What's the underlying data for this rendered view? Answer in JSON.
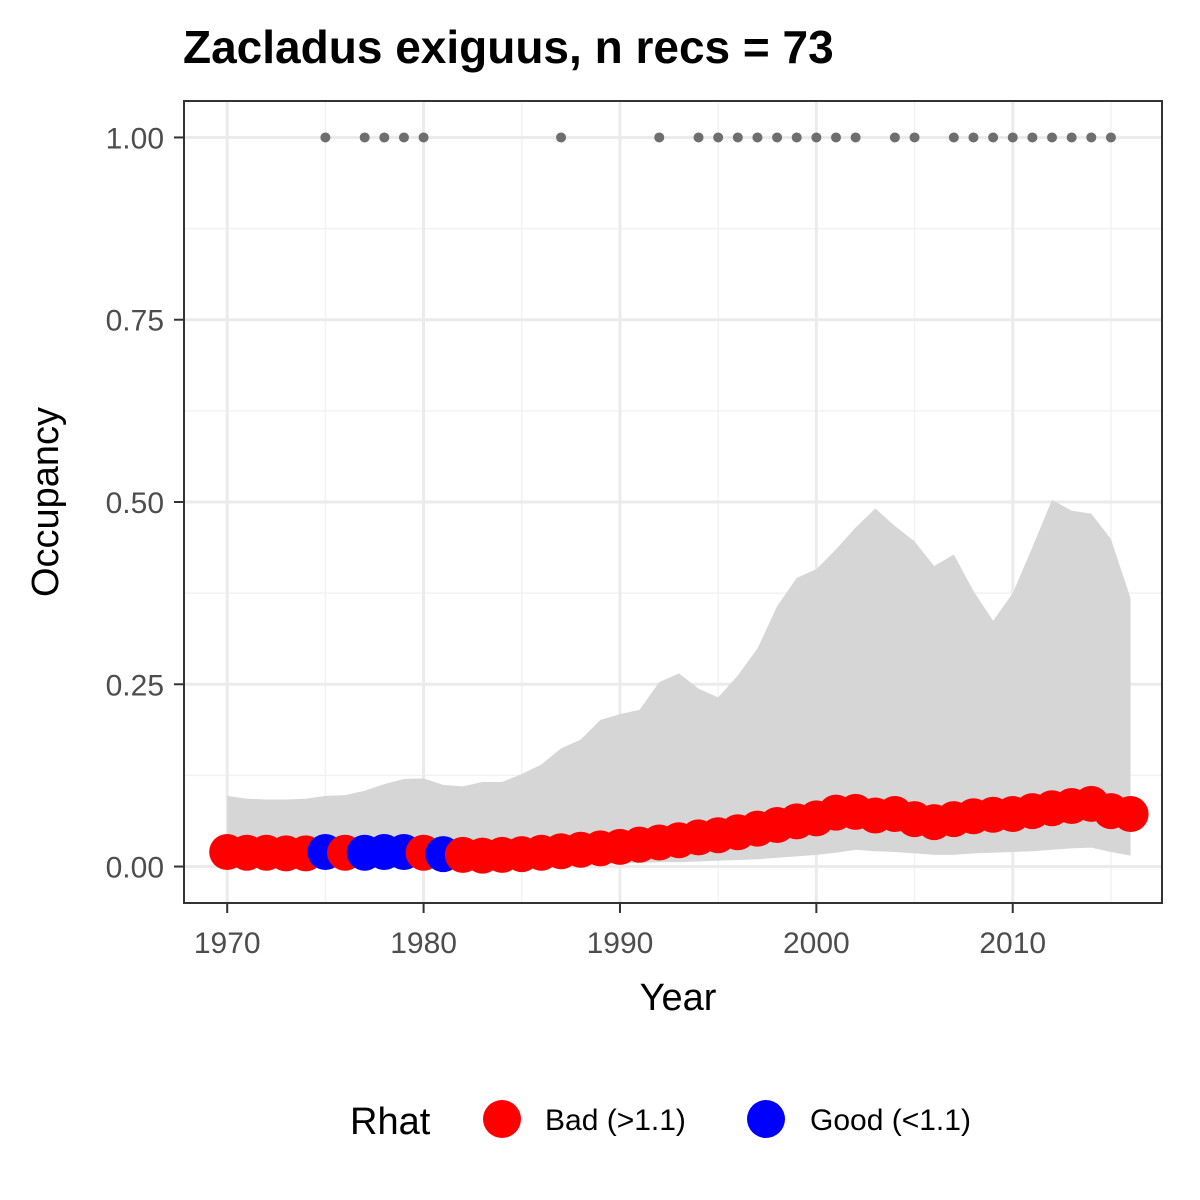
{
  "chart_data": {
    "type": "line",
    "title": "Zacladus exiguus, n recs = 73",
    "xlabel": "Year",
    "ylabel": "Occupancy",
    "xlim": [
      1967.8,
      2017.6
    ],
    "ylim": [
      -0.05,
      1.05
    ],
    "xticks": [
      1970,
      1980,
      1990,
      2000,
      2010
    ],
    "yticks": [
      0,
      0.25,
      0.5,
      0.75,
      1.0
    ],
    "ytick_labels": [
      "0.00",
      "0.25",
      "0.50",
      "0.75",
      "1.00"
    ],
    "grid": true,
    "legend": {
      "title": "Rhat",
      "position": "bottom",
      "entries": [
        {
          "label": "Bad (>1.1)",
          "color": "#ff0000"
        },
        {
          "label": "Good (<1.1)",
          "color": "#0000ff"
        }
      ]
    },
    "colors": {
      "bad": "#ff0000",
      "good": "#0000ff",
      "ribbon": "#d6d6d6",
      "records": "#6e6e6e"
    },
    "years": [
      1970,
      1971,
      1972,
      1973,
      1974,
      1975,
      1976,
      1977,
      1978,
      1979,
      1980,
      1981,
      1982,
      1983,
      1984,
      1985,
      1986,
      1987,
      1988,
      1989,
      1990,
      1991,
      1992,
      1993,
      1994,
      1995,
      1996,
      1997,
      1998,
      1999,
      2000,
      2001,
      2002,
      2003,
      2004,
      2005,
      2006,
      2007,
      2008,
      2009,
      2010,
      2011,
      2012,
      2013,
      2014,
      2015,
      2016
    ],
    "occupancy": [
      0.02,
      0.019,
      0.019,
      0.018,
      0.018,
      0.02,
      0.019,
      0.019,
      0.02,
      0.02,
      0.019,
      0.017,
      0.016,
      0.015,
      0.016,
      0.017,
      0.019,
      0.021,
      0.023,
      0.025,
      0.027,
      0.03,
      0.033,
      0.036,
      0.04,
      0.043,
      0.047,
      0.052,
      0.057,
      0.062,
      0.066,
      0.074,
      0.075,
      0.07,
      0.072,
      0.065,
      0.061,
      0.065,
      0.069,
      0.071,
      0.072,
      0.076,
      0.08,
      0.083,
      0.086,
      0.076,
      0.072
    ],
    "rhat_status": [
      "bad",
      "bad",
      "bad",
      "bad",
      "bad",
      "good",
      "bad",
      "good",
      "good",
      "good",
      "bad",
      "good",
      "bad",
      "bad",
      "bad",
      "bad",
      "bad",
      "bad",
      "bad",
      "bad",
      "bad",
      "bad",
      "bad",
      "bad",
      "bad",
      "bad",
      "bad",
      "bad",
      "bad",
      "bad",
      "bad",
      "bad",
      "bad",
      "bad",
      "bad",
      "bad",
      "bad",
      "bad",
      "bad",
      "bad",
      "bad",
      "bad",
      "bad",
      "bad",
      "bad",
      "bad",
      "bad"
    ],
    "upper_ci": [
      0.097,
      0.093,
      0.092,
      0.092,
      0.093,
      0.097,
      0.098,
      0.104,
      0.113,
      0.12,
      0.121,
      0.112,
      0.11,
      0.116,
      0.116,
      0.127,
      0.14,
      0.162,
      0.174,
      0.201,
      0.209,
      0.215,
      0.253,
      0.265,
      0.244,
      0.232,
      0.262,
      0.299,
      0.357,
      0.396,
      0.408,
      0.435,
      0.465,
      0.491,
      0.467,
      0.446,
      0.412,
      0.428,
      0.378,
      0.337,
      0.375,
      0.438,
      0.503,
      0.488,
      0.484,
      0.449,
      0.368
    ],
    "lower_ci": [
      0.004,
      0.004,
      0.004,
      0.004,
      0.004,
      0.004,
      0.004,
      0.004,
      0.004,
      0.004,
      0.004,
      0.003,
      0.003,
      0.003,
      0.003,
      0.003,
      0.003,
      0.003,
      0.003,
      0.004,
      0.004,
      0.005,
      0.006,
      0.006,
      0.007,
      0.008,
      0.009,
      0.01,
      0.012,
      0.014,
      0.016,
      0.019,
      0.023,
      0.021,
      0.02,
      0.018,
      0.016,
      0.016,
      0.018,
      0.019,
      0.02,
      0.021,
      0.023,
      0.025,
      0.026,
      0.02,
      0.015
    ],
    "record_years": [
      1975,
      1977,
      1978,
      1979,
      1980,
      1987,
      1992,
      1994,
      1995,
      1996,
      1997,
      1998,
      1999,
      2000,
      2001,
      2002,
      2004,
      2005,
      2007,
      2008,
      2009,
      2010,
      2011,
      2012,
      2013,
      2014,
      2015
    ],
    "record_value": 1.0
  }
}
